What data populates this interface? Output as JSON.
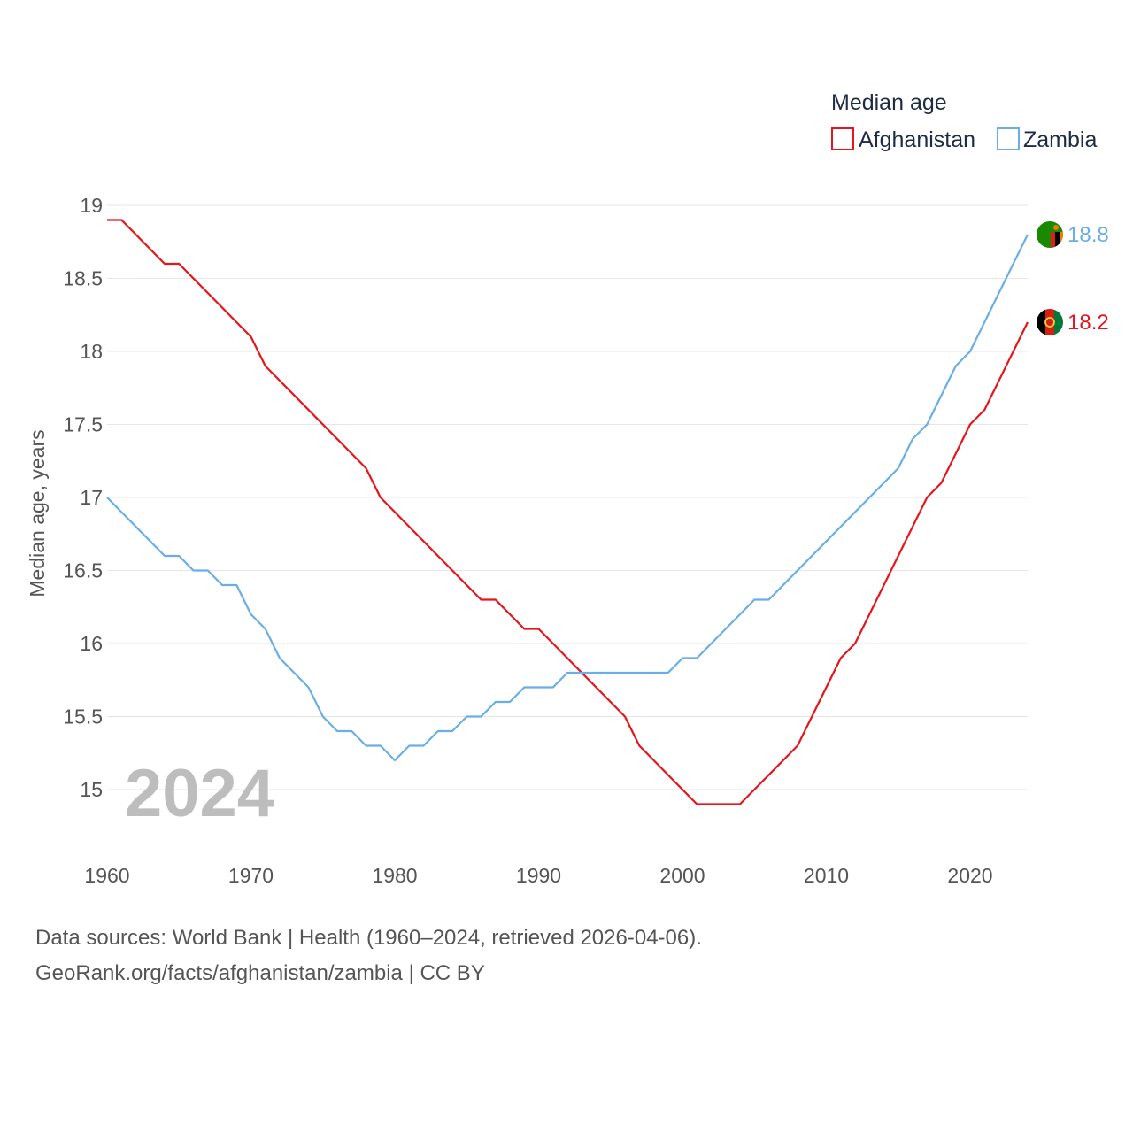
{
  "chart_data": {
    "type": "line",
    "title": "Median age",
    "ylabel": "Median age, years",
    "xlabel": "",
    "xlim": [
      1960,
      2024
    ],
    "ylim": [
      14.5,
      19.2
    ],
    "yticks": [
      15,
      15.5,
      16,
      16.5,
      17,
      17.5,
      18,
      18.5,
      19
    ],
    "ytick_labels": [
      "15",
      "15.5",
      "16",
      "16.5",
      "17",
      "17.5",
      "18",
      "18.5",
      "19"
    ],
    "xticks": [
      1960,
      1970,
      1980,
      1990,
      2000,
      2010,
      2020
    ],
    "xtick_labels": [
      "1960",
      "1970",
      "1980",
      "1990",
      "2000",
      "2010",
      "2020"
    ],
    "grid": true,
    "legend_position": "top-right",
    "current_year": "2024",
    "series": [
      {
        "name": "Afghanistan",
        "color": "#e8141b",
        "end_label": "18.2",
        "flag_icon": "afghanistan-flag-icon",
        "x": [
          1960,
          1961,
          1964,
          1965,
          1970,
          1971,
          1978,
          1979,
          1986,
          1987,
          1989,
          1990,
          1996,
          1997,
          2001,
          2004,
          2008,
          2011,
          2012,
          2017,
          2018,
          2020,
          2021,
          2024
        ],
        "values": [
          18.9,
          18.9,
          18.6,
          18.6,
          18.1,
          17.9,
          17.2,
          17.0,
          16.3,
          16.3,
          16.1,
          16.1,
          15.5,
          15.3,
          14.9,
          14.9,
          15.3,
          15.9,
          16.0,
          17.0,
          17.1,
          17.5,
          17.6,
          18.2
        ]
      },
      {
        "name": "Zambia",
        "color": "#6aaee6",
        "end_label": "18.8",
        "flag_icon": "zambia-flag-icon",
        "x": [
          1960,
          1964,
          1965,
          1966,
          1967,
          1968,
          1969,
          1970,
          1971,
          1972,
          1974,
          1975,
          1976,
          1977,
          1978,
          1979,
          1980,
          1981,
          1982,
          1983,
          1984,
          1985,
          1986,
          1987,
          1988,
          1989,
          1990,
          1991,
          1992,
          1999,
          2000,
          2001,
          2005,
          2006,
          2015,
          2016,
          2017,
          2019,
          2020,
          2024
        ],
        "values": [
          17.0,
          16.6,
          16.6,
          16.5,
          16.5,
          16.4,
          16.4,
          16.2,
          16.1,
          15.9,
          15.7,
          15.5,
          15.4,
          15.4,
          15.3,
          15.3,
          15.2,
          15.3,
          15.3,
          15.4,
          15.4,
          15.5,
          15.5,
          15.6,
          15.6,
          15.7,
          15.7,
          15.7,
          15.8,
          15.8,
          15.9,
          15.9,
          16.3,
          16.3,
          17.2,
          17.4,
          17.5,
          17.9,
          18.0,
          18.8
        ]
      }
    ]
  },
  "footer": {
    "sources": "Data sources: World Bank | Health (1960–2024, retrieved 2026-04-06).",
    "attribution": "GeoRank.org/facts/afghanistan/zambia | CC BY"
  }
}
